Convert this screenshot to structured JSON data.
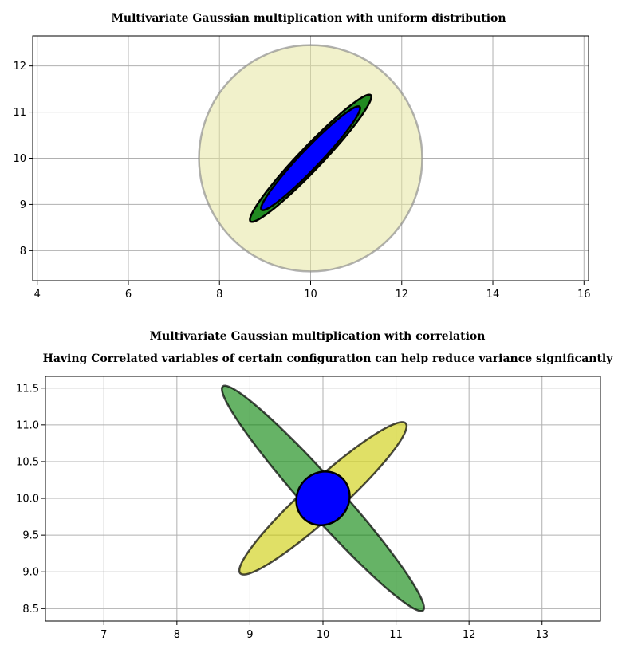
{
  "chart_data": [
    {
      "type": "ellipse",
      "title": "Multivariate Gaussian multiplication with uniform distribution",
      "xlim": [
        3.9,
        16.1
      ],
      "ylim": [
        7.35,
        12.65
      ],
      "xticks": [
        4,
        6,
        8,
        10,
        12,
        14,
        16
      ],
      "yticks": [
        8,
        9,
        10,
        11,
        12
      ],
      "grid": true,
      "ellipses": [
        {
          "name": "uniform",
          "cx": 10,
          "cy": 10,
          "width": 4.9,
          "height": 4.9,
          "angle": 0,
          "fill": "#e6e6a0",
          "alpha": 0.55,
          "stroke": "#888888",
          "stroke_width": 2.5
        },
        {
          "name": "prior",
          "cx": 10,
          "cy": 10,
          "width": 3.8,
          "height": 0.5,
          "angle": 46,
          "fill": "#218a21",
          "alpha": 1,
          "stroke": "#000000",
          "stroke_width": 2.5
        },
        {
          "name": "posterior",
          "cx": 10,
          "cy": 10,
          "width": 3.1,
          "height": 0.42,
          "angle": 46,
          "fill": "#0000ff",
          "alpha": 1,
          "stroke": "#000000",
          "stroke_width": 2.5
        }
      ]
    },
    {
      "type": "ellipse",
      "title": "Multivariate Gaussian multiplication with correlation",
      "subtitle": "Having Correlated variables of certain configuration can help reduce variance significantly",
      "xlim": [
        6.2,
        13.8
      ],
      "ylim": [
        8.33,
        11.66
      ],
      "xticks": [
        7,
        8,
        9,
        10,
        11,
        12,
        13
      ],
      "yticks": [
        8.5,
        9.0,
        9.5,
        10.0,
        10.5,
        11.0,
        11.5
      ],
      "ytick_labels": [
        "8.5",
        "9.0",
        "9.5",
        "10.0",
        "10.5",
        "11.0",
        "11.5"
      ],
      "grid": true,
      "ellipses": [
        {
          "name": "gaussian-a",
          "cx": 10,
          "cy": 10,
          "width": 3.05,
          "height": 0.5,
          "angle": 42,
          "fill": "#cccc00",
          "alpha": 0.6,
          "stroke": "#000000",
          "stroke_width": 2.5
        },
        {
          "name": "gaussian-b",
          "cx": 10,
          "cy": 10,
          "width": 4.1,
          "height": 0.5,
          "angle": -48,
          "fill": "#008000",
          "alpha": 0.6,
          "stroke": "#000000",
          "stroke_width": 2.5
        },
        {
          "name": "product",
          "cx": 10,
          "cy": 10,
          "width": 0.76,
          "height": 0.7,
          "angle": 45,
          "fill": "#0000ff",
          "alpha": 1,
          "stroke": "#000000",
          "stroke_width": 2.5
        }
      ]
    }
  ]
}
